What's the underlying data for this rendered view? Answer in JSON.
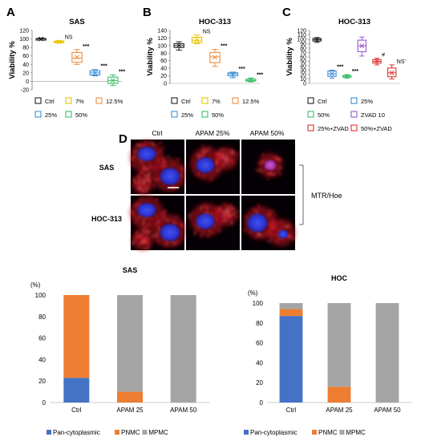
{
  "panel_letters": {
    "a": "A",
    "b": "B",
    "c": "C",
    "d": "D"
  },
  "colors": {
    "black": "#222222",
    "yellow": "#e8c400",
    "orange": "#f28c3c",
    "blue": "#3d8fd6",
    "green": "#3dbe6a",
    "purple": "#9a55c9",
    "red": "#e03232",
    "pan": "#4472c4",
    "pnmc": "#ed7d31",
    "mpmc": "#a5a5a5",
    "mito": "#e0202a",
    "nucleus": "#2a3cff"
  },
  "chart_data": [
    {
      "id": "A",
      "type": "box",
      "title": "SAS",
      "ylabel": "Viability %",
      "ylim": [
        -20,
        120
      ],
      "yticks": [
        -20,
        0,
        20,
        40,
        60,
        80,
        100,
        120
      ],
      "boxes": [
        {
          "name": "Ctrl",
          "color": "black",
          "min": 98,
          "q1": 99,
          "median": 100,
          "q3": 101,
          "max": 102,
          "mean": 100
        },
        {
          "name": "7%",
          "color": "yellow",
          "min": 91,
          "q1": 92,
          "median": 93,
          "q3": 95,
          "max": 96,
          "mean": 93,
          "label": "NS"
        },
        {
          "name": "12.5%",
          "color": "orange",
          "min": 40,
          "q1": 45,
          "median": 55,
          "q3": 68,
          "max": 75,
          "mean": 57,
          "label": "***"
        },
        {
          "name": "25%",
          "color": "blue",
          "min": 13,
          "q1": 15,
          "median": 20,
          "q3": 25,
          "max": 28,
          "mean": 20,
          "label": "***"
        },
        {
          "name": "50%",
          "color": "green",
          "min": -10,
          "q1": -5,
          "median": 2,
          "q3": 10,
          "max": 15,
          "mean": 2,
          "label": "***"
        }
      ],
      "legend": [
        {
          "name": "Ctrl",
          "color": "black"
        },
        {
          "name": "7%",
          "color": "yellow"
        },
        {
          "name": "12.5%",
          "color": "orange"
        },
        {
          "name": "25%",
          "color": "blue"
        },
        {
          "name": "50%",
          "color": "green"
        }
      ]
    },
    {
      "id": "B",
      "type": "box",
      "title": "HOC-313",
      "ylabel": "Viability %",
      "ylim": [
        0,
        140
      ],
      "yticks": [
        0,
        20,
        40,
        60,
        80,
        100,
        120,
        140
      ],
      "boxes": [
        {
          "name": "Ctrl",
          "color": "black",
          "min": 88,
          "q1": 95,
          "median": 100,
          "q3": 105,
          "max": 110,
          "mean": 100
        },
        {
          "name": "7%",
          "color": "yellow",
          "min": 105,
          "q1": 108,
          "median": 114,
          "q3": 122,
          "max": 128,
          "mean": 115,
          "label": "NS"
        },
        {
          "name": "12.5%",
          "color": "orange",
          "min": 45,
          "q1": 55,
          "median": 70,
          "q3": 82,
          "max": 90,
          "mean": 69,
          "label": "***"
        },
        {
          "name": "25%",
          "color": "blue",
          "min": 15,
          "q1": 20,
          "median": 25,
          "q3": 28,
          "max": 30,
          "mean": 24,
          "label": "***"
        },
        {
          "name": "50%",
          "color": "green",
          "min": 4,
          "q1": 6,
          "median": 8,
          "q3": 11,
          "max": 14,
          "mean": 9,
          "label": "***"
        }
      ],
      "legend": [
        {
          "name": "Ctrl",
          "color": "black"
        },
        {
          "name": "7%",
          "color": "yellow"
        },
        {
          "name": "12.5%",
          "color": "orange"
        },
        {
          "name": "25%",
          "color": "blue"
        },
        {
          "name": "50%",
          "color": "green"
        }
      ]
    },
    {
      "id": "C",
      "type": "box",
      "title": "HOC-313",
      "ylabel": "Viability %",
      "ylim": [
        0,
        120
      ],
      "yticks": [
        0,
        10,
        20,
        30,
        40,
        50,
        60,
        70,
        80,
        90,
        100,
        110,
        120
      ],
      "boxes": [
        {
          "name": "Ctrl",
          "color": "black",
          "min": 93,
          "q1": 96,
          "median": 99,
          "q3": 102,
          "max": 104,
          "mean": 99
        },
        {
          "name": "25%",
          "color": "blue",
          "min": 12,
          "q1": 16,
          "median": 22,
          "q3": 28,
          "max": 30,
          "mean": 22,
          "label": "***"
        },
        {
          "name": "50%",
          "color": "green",
          "min": 12,
          "q1": 14,
          "median": 16,
          "q3": 18,
          "max": 20,
          "mean": 16,
          "label": "***"
        },
        {
          "name": "ZVAD 10",
          "color": "purple",
          "min": 62,
          "q1": 72,
          "median": 85,
          "q3": 98,
          "max": 105,
          "mean": 85
        },
        {
          "name": "25%+ZVAD",
          "color": "red",
          "min": 42,
          "q1": 46,
          "median": 50,
          "q3": 54,
          "max": 57,
          "mean": 50,
          "label": "#"
        },
        {
          "name": "50%+ZVAD",
          "color": "red",
          "min": 10,
          "q1": 15,
          "median": 24,
          "q3": 35,
          "max": 42,
          "mean": 24,
          "label": "NS'"
        }
      ],
      "legend": [
        {
          "name": "Ctrl",
          "color": "black"
        },
        {
          "name": "25%",
          "color": "blue"
        },
        {
          "name": "50%",
          "color": "green"
        },
        {
          "name": "ZVAD 10",
          "color": "purple"
        },
        {
          "name": "25%+ZVAD",
          "color": "red"
        },
        {
          "name": "50%+ZVAD",
          "color": "red"
        }
      ]
    },
    {
      "id": "D-SAS",
      "type": "bar",
      "stacked": true,
      "title": "SAS",
      "ylabel": "(%)",
      "ylim": [
        0,
        100
      ],
      "yticks": [
        0,
        20,
        40,
        60,
        80,
        100
      ],
      "categories": [
        "Ctrl",
        "APAM 25",
        "APAM 50"
      ],
      "series": [
        {
          "name": "Pan-cytoplasmic",
          "color": "pan",
          "values": [
            23,
            0,
            0
          ]
        },
        {
          "name": "PNMC",
          "color": "pnmc",
          "values": [
            77,
            10,
            0
          ]
        },
        {
          "name": "MPMC",
          "color": "mpmc",
          "values": [
            0,
            90,
            100
          ]
        }
      ]
    },
    {
      "id": "D-HOC",
      "type": "bar",
      "stacked": true,
      "title": "HOC",
      "ylabel": "(%)",
      "ylim": [
        0,
        100
      ],
      "yticks": [
        0,
        20,
        40,
        60,
        80,
        100
      ],
      "categories": [
        "Ctrl",
        "APAM 25",
        "APAM 50"
      ],
      "series": [
        {
          "name": "Pan-cytoplasmic",
          "color": "pan",
          "values": [
            87,
            0,
            0
          ]
        },
        {
          "name": "PNMC",
          "color": "pnmc",
          "values": [
            7,
            16,
            0
          ]
        },
        {
          "name": "MPMC",
          "color": "mpmc",
          "values": [
            6,
            84,
            100
          ]
        }
      ]
    }
  ],
  "microscopy": {
    "col_labels": [
      "Ctrl",
      "APAM 25%",
      "APAM 50%"
    ],
    "row_labels": [
      "SAS",
      "HOC-313"
    ],
    "side_label": "MTR/Hoe"
  }
}
